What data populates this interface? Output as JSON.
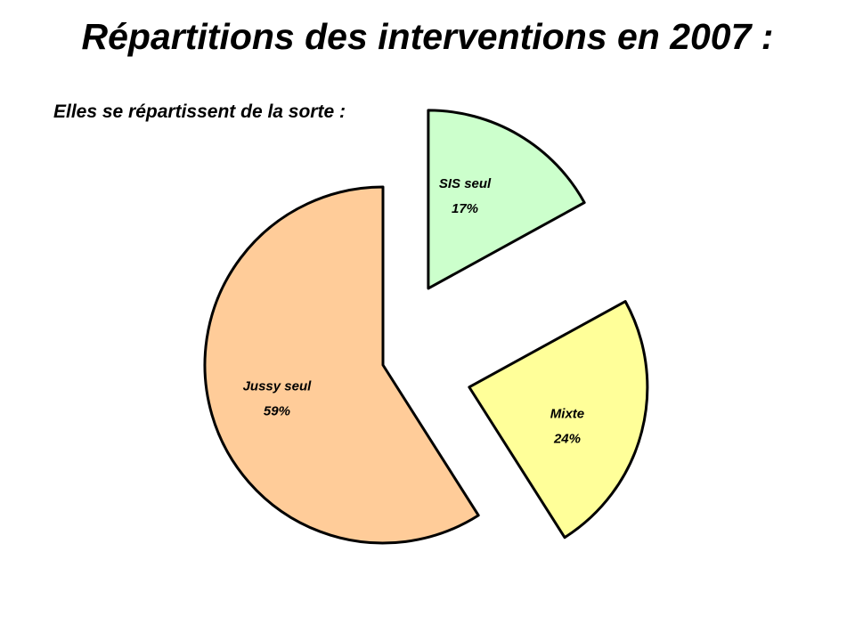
{
  "slide": {
    "title": "Répartitions des interventions en 2007 :",
    "subtitle": "Elles se répartissent de la sorte :"
  },
  "chart_data": {
    "type": "pie",
    "title": "",
    "legend": "none",
    "exploded": true,
    "slices": [
      {
        "label": "SIS seul",
        "value": 17,
        "value_label": "17%",
        "color": "#ccffcc"
      },
      {
        "label": "Mixte",
        "value": 24,
        "value_label": "24%",
        "color": "#ffff99"
      },
      {
        "label": "Jussy seul",
        "value": 59,
        "value_label": "59%",
        "color": "#ffcc99"
      }
    ]
  }
}
